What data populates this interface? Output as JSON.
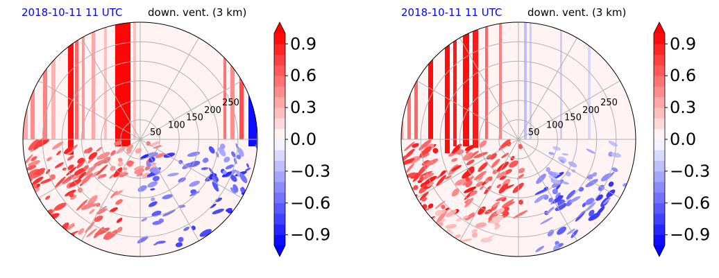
{
  "colors": {
    "date_title": "#0000ff",
    "positive": "#ff0000",
    "negative": "#0000ff",
    "grid": "#b0b0b0"
  },
  "panels": [
    {
      "date_title": "2018-10-11 11 UTC",
      "variable_title": "down. vent. (3 km)"
    },
    {
      "date_title": "2018-10-11 11 UTC",
      "variable_title": "down. vent. (3 km)"
    }
  ],
  "chart_data": [
    {
      "type": "heatmap",
      "projection": "polar",
      "title": "down. vent. (3 km)",
      "subtitle": "2018-10-11 11 UTC",
      "radial_ticks": [
        50,
        100,
        150,
        200,
        250
      ],
      "rlim": [
        0,
        300
      ],
      "grid": true,
      "colormap": "bwr",
      "colorbar": {
        "ticks": [
          "0.9",
          "0.6",
          "0.3",
          "0.0",
          "−0.3",
          "−0.6",
          "−0.9"
        ],
        "tick_values": [
          0.9,
          0.6,
          0.3,
          0.0,
          -0.3,
          -0.6,
          -0.9
        ],
        "vmin": -1.0,
        "vmax": 1.0,
        "levels": 20,
        "extend": "both"
      }
    },
    {
      "type": "heatmap",
      "projection": "polar",
      "title": "down. vent. (3 km)",
      "subtitle": "2018-10-11 11 UTC",
      "radial_ticks": [
        50,
        100,
        150,
        200,
        250
      ],
      "rlim": [
        0,
        300
      ],
      "grid": true,
      "colormap": "bwr",
      "colorbar": {
        "ticks": [
          "0.9",
          "0.6",
          "0.3",
          "0.0",
          "−0.3",
          "−0.6",
          "−0.9"
        ],
        "tick_values": [
          0.9,
          0.6,
          0.3,
          0.0,
          -0.3,
          -0.6,
          -0.9
        ],
        "vmin": -1.0,
        "vmax": 1.0,
        "levels": 20,
        "extend": "both"
      }
    }
  ]
}
